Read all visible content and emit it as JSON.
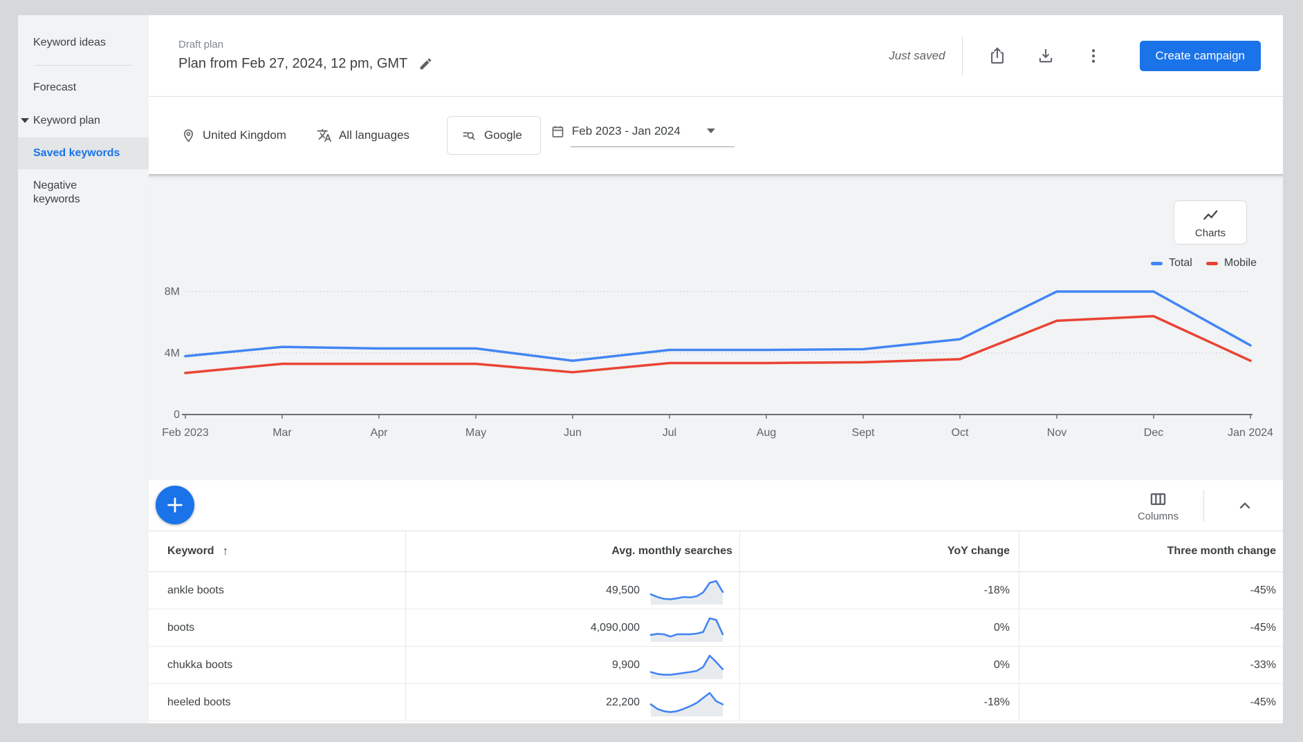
{
  "sidebar": {
    "items": [
      {
        "label": "Keyword ideas"
      },
      {
        "label": "Forecast"
      },
      {
        "label": "Keyword plan"
      },
      {
        "label": "Saved keywords"
      },
      {
        "label": "Negative keywords"
      }
    ]
  },
  "header": {
    "overline": "Draft plan",
    "title": "Plan from Feb 27, 2024, 12 pm, GMT",
    "save_status": "Just saved",
    "create_campaign_label": "Create campaign"
  },
  "filters": {
    "location": "United Kingdom",
    "language": "All languages",
    "network": "Google",
    "date_range": "Feb 2023 - Jan 2024"
  },
  "chart_panel": {
    "charts_button_label": "Charts",
    "legend": [
      {
        "label": "Total",
        "color": "#4285f4"
      },
      {
        "label": "Mobile",
        "color": "#ea4335"
      }
    ]
  },
  "chart_data": {
    "type": "line",
    "x": [
      "Feb 2023",
      "Mar",
      "Apr",
      "May",
      "Jun",
      "Jul",
      "Aug",
      "Sept",
      "Oct",
      "Nov",
      "Dec",
      "Jan 2024"
    ],
    "series": [
      {
        "name": "Total",
        "color": "#4285f4",
        "values": [
          3.8,
          4.4,
          4.3,
          4.3,
          3.5,
          4.2,
          4.2,
          4.25,
          4.9,
          8.0,
          8.0,
          4.5
        ]
      },
      {
        "name": "Mobile",
        "color": "#ea4335",
        "values": [
          2.7,
          3.3,
          3.3,
          3.3,
          2.75,
          3.35,
          3.35,
          3.4,
          3.6,
          6.1,
          6.4,
          3.5
        ]
      }
    ],
    "yticks": [
      0,
      4,
      8
    ],
    "ytick_labels": [
      "0",
      "4M",
      "8M"
    ],
    "ylim": [
      0,
      8.9
    ],
    "grid": true,
    "legend_position": "top-right"
  },
  "table": {
    "columns_label": "Columns",
    "headers": [
      {
        "label": "Keyword",
        "sorted": "ascending"
      },
      {
        "label": "Avg. monthly searches"
      },
      {
        "label": "YoY change"
      },
      {
        "label": "Three month change"
      }
    ],
    "rows": [
      {
        "keyword": "ankle boots",
        "avg_monthly_searches": "49,500",
        "yoy_change": "-18%",
        "three_month_change": "-45%",
        "trend": [
          0.42,
          0.3,
          0.22,
          0.2,
          0.24,
          0.3,
          0.28,
          0.33,
          0.5,
          0.92,
          1.0,
          0.52
        ]
      },
      {
        "keyword": "boots",
        "avg_monthly_searches": "4,090,000",
        "yoy_change": "0%",
        "three_month_change": "-45%",
        "trend": [
          0.27,
          0.32,
          0.3,
          0.2,
          0.3,
          0.3,
          0.3,
          0.33,
          0.4,
          1.0,
          0.93,
          0.3
        ]
      },
      {
        "keyword": "chukka boots",
        "avg_monthly_searches": "9,900",
        "yoy_change": "0%",
        "three_month_change": "-33%",
        "trend": [
          0.28,
          0.2,
          0.16,
          0.16,
          0.2,
          0.24,
          0.28,
          0.33,
          0.5,
          1.0,
          0.72,
          0.4
        ]
      },
      {
        "keyword": "heeled boots",
        "avg_monthly_searches": "22,200",
        "yoy_change": "-18%",
        "three_month_change": "-45%",
        "trend": [
          0.5,
          0.3,
          0.2,
          0.16,
          0.2,
          0.3,
          0.42,
          0.56,
          0.78,
          1.0,
          0.64,
          0.5
        ]
      }
    ]
  }
}
